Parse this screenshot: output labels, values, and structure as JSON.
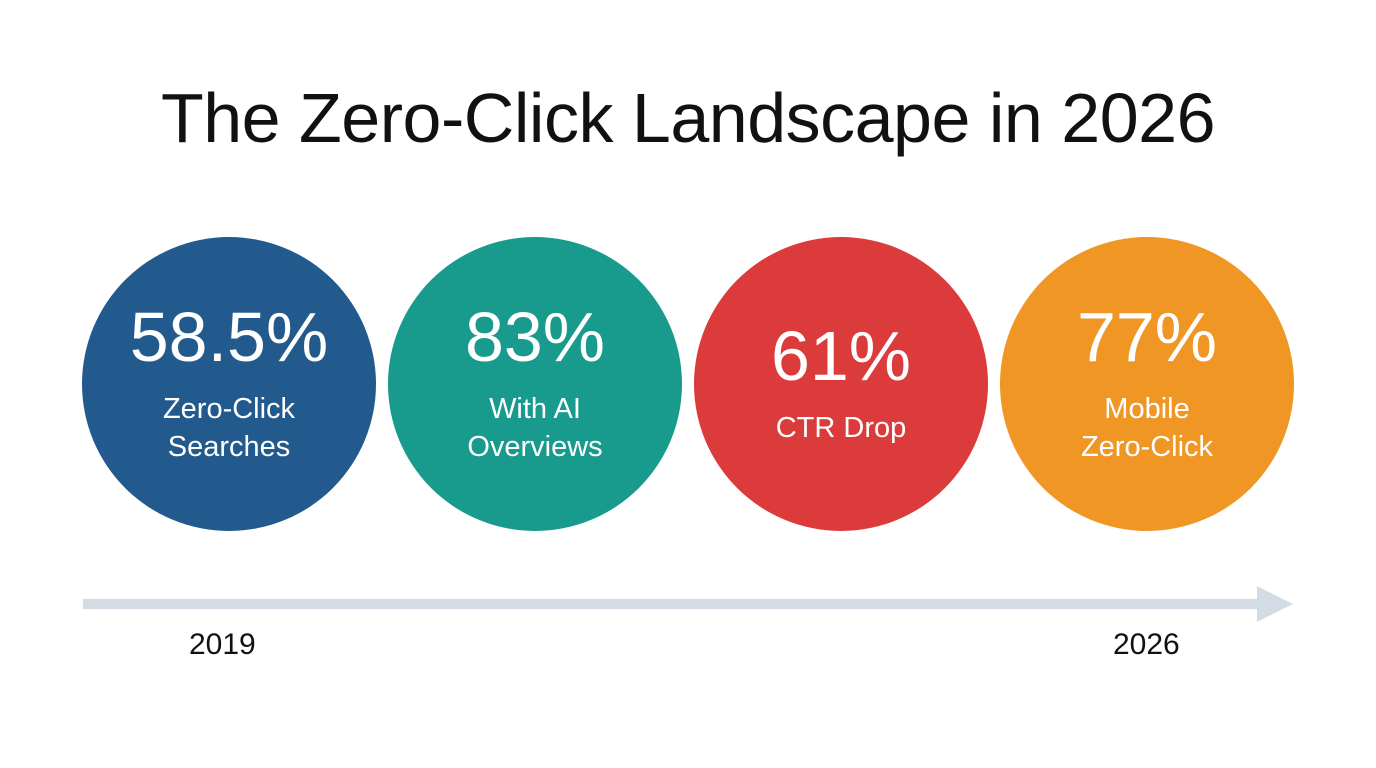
{
  "title": "The Zero-Click Landscape in 2026",
  "stats": [
    {
      "value": "58.5%",
      "label": "Zero-Click\nSearches",
      "color": "#235a8d"
    },
    {
      "value": "83%",
      "label": "With AI\nOverviews",
      "color": "#189a8d"
    },
    {
      "value": "61%",
      "label": "CTR Drop",
      "color": "#db3b3a"
    },
    {
      "value": "77%",
      "label": "Mobile\nZero-Click",
      "color": "#ef9625"
    }
  ],
  "timeline": {
    "start_label": "2019",
    "end_label": "2026",
    "arrow_color": "#d3dbe4"
  }
}
